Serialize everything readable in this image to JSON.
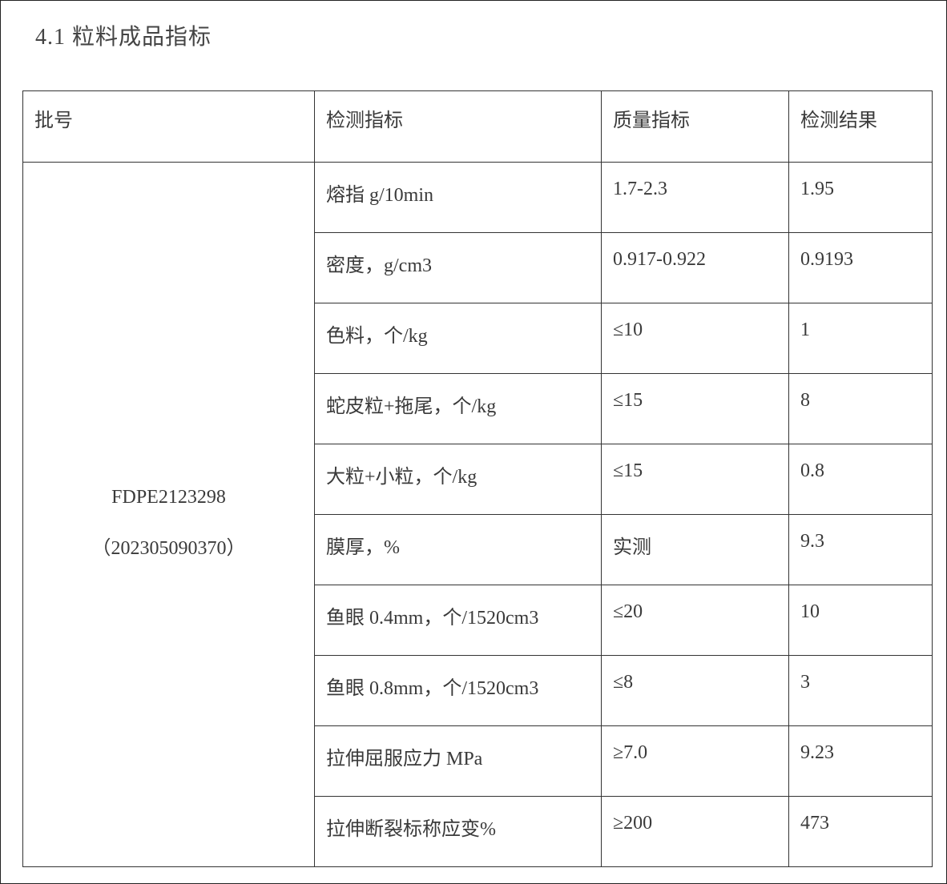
{
  "title": "4.1 粒料成品指标",
  "headers": [
    "批号",
    "检测指标",
    "质量指标",
    "检测结果"
  ],
  "batch": {
    "number": "FDPE2123298",
    "code": "（202305090370）"
  },
  "rows": [
    {
      "item": "熔指 g/10min",
      "standard": "1.7-2.3",
      "result": "1.95"
    },
    {
      "item": "密度，g/cm3",
      "standard": "0.917-0.922",
      "result": "0.9193"
    },
    {
      "item": "色料，个/kg",
      "standard": "≤10",
      "result": "1"
    },
    {
      "item": "蛇皮粒+拖尾，个/kg",
      "standard": "≤15",
      "result": "8"
    },
    {
      "item": "大粒+小粒，个/kg",
      "standard": "≤15",
      "result": "0.8"
    },
    {
      "item": "膜厚，%",
      "standard": "实测",
      "result": "9.3"
    },
    {
      "item": "鱼眼 0.4mm，个/1520cm3",
      "standard": "≤20",
      "result": "10"
    },
    {
      "item": "鱼眼 0.8mm，个/1520cm3",
      "standard": "≤8",
      "result": "3"
    },
    {
      "item": "拉伸屈服应力 MPa",
      "standard": "≥7.0",
      "result": "9.23"
    },
    {
      "item": "拉伸断裂标称应变%",
      "standard": "≥200",
      "result": "473"
    }
  ]
}
